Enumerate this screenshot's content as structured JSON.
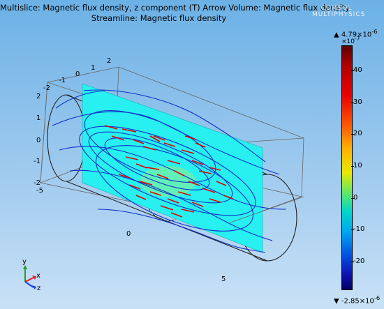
{
  "header": {
    "title_line1": "Multislice: Magnetic flux density, z component (T)  Arrow Volume: Magnetic flux density",
    "title_line2": "Streamline: Magnetic flux density"
  },
  "logo": {
    "line1": "COMSOL",
    "line2": "MULTIPHYSICS"
  },
  "axes": {
    "y_ticks": [
      "-2",
      "-1",
      "0",
      "1",
      "2"
    ],
    "z_ticks": [
      "2",
      "1",
      "0",
      "-1",
      "-2"
    ],
    "x_ticks": [
      "-5",
      "0",
      "5"
    ]
  },
  "colorbar": {
    "max_label": "4.79×10",
    "max_exp": "-6",
    "scale_label": "×10",
    "scale_exp": "-7",
    "min_label": "-2.85×10",
    "min_exp": "-6",
    "ticks": [
      "40",
      "30",
      "20",
      "10",
      "0",
      "-10",
      "-20"
    ],
    "tick_values": [
      40,
      30,
      20,
      10,
      0,
      -10,
      -20
    ],
    "range": [
      -28.5,
      47.9
    ],
    "gradient_colors": [
      "#5b0000",
      "#e60000",
      "#ffb000",
      "#e8e800",
      "#00d6c8",
      "#0050e0",
      "#000060"
    ]
  },
  "triad": {
    "y": "y",
    "x": "x",
    "z": "z"
  },
  "colors": {
    "slice": "#28f0f0",
    "arrows": "#e00000",
    "streamlines": "#1030c8"
  }
}
